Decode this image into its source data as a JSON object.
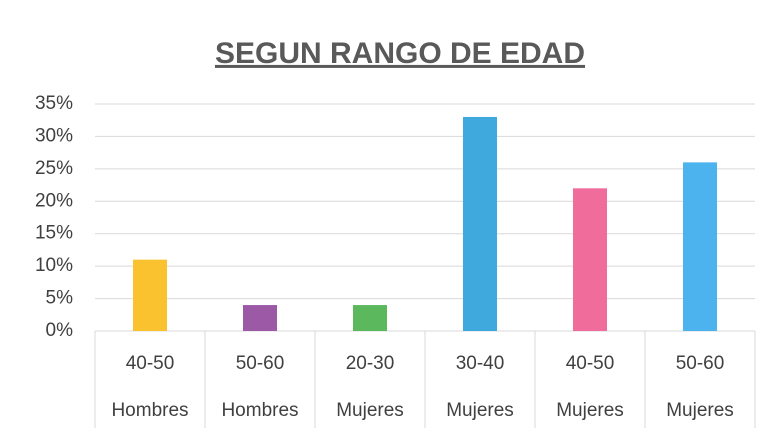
{
  "chart_data": {
    "type": "bar",
    "title": "SEGUN RANGO DE EDAD",
    "categories": [
      "40-50",
      "50-60",
      "20-30",
      "30-40",
      "40-50",
      "50-60"
    ],
    "groups": [
      "Hombres",
      "Hombres",
      "Mujeres",
      "Mujeres",
      "Mujeres",
      "Mujeres"
    ],
    "values": [
      11,
      4,
      4,
      33,
      22,
      26
    ],
    "colors": [
      "#f9c22e",
      "#9b59a6",
      "#5cb85c",
      "#3fa8dc",
      "#f06c9b",
      "#4db3ee"
    ],
    "ylim": [
      0,
      35
    ],
    "yticks": [
      {
        "value": 0,
        "label": "0%"
      },
      {
        "value": 5,
        "label": "5%"
      },
      {
        "value": 10,
        "label": "10%"
      },
      {
        "value": 15,
        "label": "15%"
      },
      {
        "value": 20,
        "label": "20%"
      },
      {
        "value": 25,
        "label": "25%"
      },
      {
        "value": 30,
        "label": "30%"
      },
      {
        "value": 35,
        "label": "35%"
      }
    ],
    "grid": true
  }
}
